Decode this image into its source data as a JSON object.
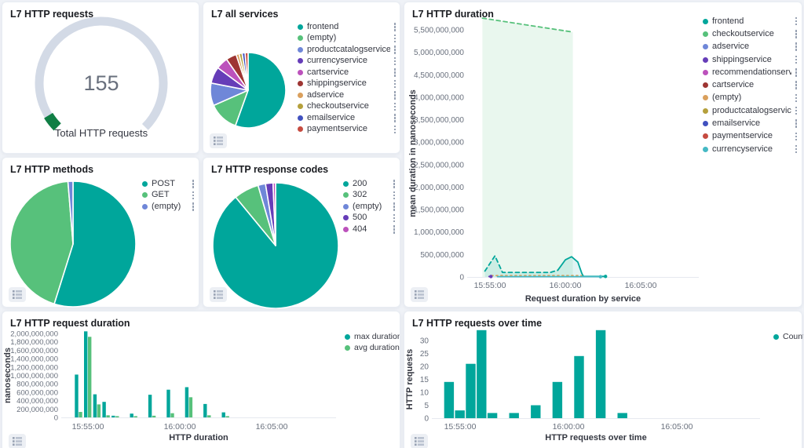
{
  "colors": {
    "teal": "#00a69b",
    "green": "#57c17b",
    "periwinkle": "#6f87d8",
    "purple": "#663db8",
    "magenta": "#bc52bc",
    "darkred": "#9e3533",
    "orange": "#daa05d",
    "olive": "#b5a03c",
    "blue": "#4151bf",
    "red": "#c64b40",
    "cyan": "#45b9c4",
    "gauge_track": "#d3dae6",
    "gauge_green": "#107e45",
    "value_text": "#69707d",
    "text": "#343741",
    "title": "#1a1c21",
    "axis": "#69707d",
    "baseline": "#e6e9ef",
    "page_bg": "#eff2f7",
    "panel_bg": "#ffffff"
  },
  "chart_data": [
    {
      "id": "gauge",
      "type": "gauge",
      "title": "L7 HTTP requests",
      "value": 155,
      "display_value": "155",
      "label": "Total HTTP requests",
      "fraction_filled": 0.05
    },
    {
      "id": "all-services",
      "type": "pie",
      "title": "L7 all services",
      "legend_kebab": true,
      "labels": [
        "frontend",
        "(empty)",
        "productcatalogservice",
        "currencyservice",
        "cartservice",
        "shippingservice",
        "adservice",
        "checkoutservice",
        "emailservice",
        "paymentservice"
      ],
      "values": [
        86,
        20,
        15,
        11,
        8,
        7,
        2,
        2,
        2,
        2
      ],
      "colors": [
        "teal",
        "green",
        "periwinkle",
        "purple",
        "magenta",
        "darkred",
        "orange",
        "olive",
        "blue",
        "red"
      ]
    },
    {
      "id": "duration",
      "type": "line",
      "title": "L7 HTTP duration",
      "ylabel": "mean duration in nanoseconds",
      "xlabel": "Request duration by service",
      "ylim": [
        0,
        5500000000
      ],
      "ytick_step": 500000000,
      "xticks": [
        {
          "t": 60,
          "label": "15:55:00"
        },
        {
          "t": 360,
          "label": "16:00:00"
        },
        {
          "t": 660,
          "label": "16:05:00"
        }
      ],
      "legend_kebab": true,
      "legend": [
        {
          "label": "frontend",
          "color": "teal"
        },
        {
          "label": "checkoutservice",
          "color": "green"
        },
        {
          "label": "adservice",
          "color": "periwinkle"
        },
        {
          "label": "shippingservice",
          "color": "purple"
        },
        {
          "label": "recommendationservice",
          "color": "magenta"
        },
        {
          "label": "cartservice",
          "color": "darkred"
        },
        {
          "label": "(empty)",
          "color": "orange"
        },
        {
          "label": "productcatalogservice",
          "color": "olive"
        },
        {
          "label": "emailservice",
          "color": "blue"
        },
        {
          "label": "paymentservice",
          "color": "red"
        },
        {
          "label": "currencyservice",
          "color": "cyan"
        }
      ],
      "series": [
        {
          "name": "checkoutservice",
          "color": "green",
          "dash": "5 4",
          "fill": 0.13,
          "points": [
            [
              30,
              5760000000
            ],
            [
              390,
              5450000000
            ]
          ]
        },
        {
          "name": "frontend",
          "color": "teal",
          "dash": "5 4",
          "fill": 0.12,
          "points": [
            [
              40,
              130000000
            ],
            [
              80,
              470000000
            ],
            [
              110,
              100000000
            ],
            [
              300,
              100000000
            ],
            [
              330,
              150000000
            ]
          ]
        },
        {
          "name": "frontend",
          "color": "teal",
          "fill": 0.12,
          "end_dot": true,
          "points": [
            [
              330,
              150000000
            ],
            [
              360,
              380000000
            ],
            [
              385,
              450000000
            ],
            [
              410,
              330000000
            ],
            [
              425,
              90000000
            ],
            [
              432,
              12000000
            ],
            [
              520,
              12000000
            ]
          ]
        },
        {
          "name": "(empty)",
          "color": "orange",
          "dash": "2 4",
          "points": [
            [
              66,
              30000000
            ],
            [
              425,
              30000000
            ]
          ]
        },
        {
          "name": "currencyservice",
          "color": "cyan",
          "end_dot": true,
          "points": [
            [
              90,
              6000000
            ],
            [
              500,
              6000000
            ]
          ]
        },
        {
          "name": "shippingservice",
          "color": "purple",
          "end_dot": true,
          "points": [
            [
              56,
              10000000
            ],
            [
              64,
              10000000
            ]
          ]
        }
      ]
    },
    {
      "id": "methods",
      "type": "pie",
      "title": "L7 HTTP methods",
      "legend_kebab": true,
      "labels": [
        "POST",
        "GET",
        "(empty)"
      ],
      "values": [
        85,
        68,
        2
      ],
      "colors": [
        "teal",
        "green",
        "periwinkle"
      ]
    },
    {
      "id": "codes",
      "type": "pie",
      "title": "L7 HTTP response codes",
      "legend_kebab": true,
      "labels": [
        "200",
        "302",
        "(empty)",
        "500",
        "404"
      ],
      "values": [
        138,
        10,
        3,
        3,
        1
      ],
      "colors": [
        "teal",
        "green",
        "periwinkle",
        "purple",
        "magenta"
      ]
    },
    {
      "id": "req-duration",
      "type": "bar",
      "title": "L7 HTTP request duration",
      "ylabel": "nanoseconds",
      "xlabel": "HTTP duration",
      "ylim": [
        0,
        2000000000
      ],
      "ytick_step": 200000000,
      "xticks": [
        {
          "t": 60,
          "label": "15:55:00"
        },
        {
          "t": 360,
          "label": "16:00:00"
        },
        {
          "t": 660,
          "label": "16:05:00"
        }
      ],
      "categories_t": [
        30,
        60,
        90,
        120,
        150,
        210,
        270,
        330,
        390,
        450,
        510
      ],
      "categories_time": [
        "15:54:30",
        "15:55:00",
        "15:55:30",
        "15:56:00",
        "15:56:30",
        "15:57:30",
        "15:58:30",
        "15:59:30",
        "16:00:30",
        "16:01:30",
        "16:02:30"
      ],
      "series": [
        {
          "name": "max duration",
          "color": "teal",
          "values": [
            1020000000,
            2050000000,
            550000000,
            370000000,
            40000000,
            90000000,
            540000000,
            660000000,
            720000000,
            320000000,
            120000000
          ]
        },
        {
          "name": "avg duration",
          "color": "green",
          "values": [
            130000000,
            1920000000,
            310000000,
            50000000,
            30000000,
            30000000,
            40000000,
            100000000,
            480000000,
            50000000,
            30000000
          ]
        }
      ]
    },
    {
      "id": "over-time",
      "type": "bar",
      "title": "L7 HTTP requests over time",
      "ylabel": "HTTP requests",
      "xlabel": "HTTP requests over time",
      "ylim": [
        0,
        34
      ],
      "yticks": [
        0,
        5,
        10,
        15,
        20,
        25,
        30
      ],
      "xticks": [
        {
          "t": 60,
          "label": "15:55:00"
        },
        {
          "t": 360,
          "label": "16:00:00"
        },
        {
          "t": 660,
          "label": "16:05:00"
        }
      ],
      "categories_t": [
        30,
        60,
        90,
        120,
        150,
        210,
        270,
        330,
        390,
        450,
        510
      ],
      "categories_time": [
        "15:54:30",
        "15:55:00",
        "15:55:30",
        "15:56:00",
        "15:56:30",
        "15:57:30",
        "15:58:30",
        "15:59:30",
        "16:00:30",
        "16:01:30",
        "16:02:30"
      ],
      "series": [
        {
          "name": "Count",
          "color": "teal",
          "values": [
            14,
            3,
            21,
            34,
            2,
            2,
            5,
            14,
            24,
            34,
            2
          ]
        }
      ]
    }
  ]
}
